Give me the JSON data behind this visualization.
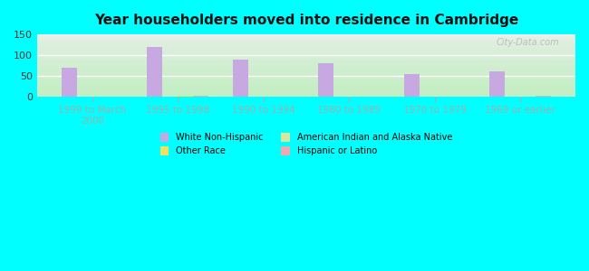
{
  "title": "Year householders moved into residence in Cambridge",
  "background_color": "#00FFFF",
  "categories": [
    "1999 to March\n2000",
    "1995 to 1998",
    "1990 to 1994",
    "1980 to 1989",
    "1970 to 1979",
    "1969 or earlier"
  ],
  "series": [
    {
      "name": "White Non-Hispanic",
      "color": "#c8a8e0",
      "values": [
        70,
        120,
        90,
        80,
        55,
        60
      ]
    },
    {
      "name": "American Indian and Alaska Native",
      "color": "#d4e8a0",
      "values": [
        0,
        0,
        0,
        0,
        0,
        0
      ]
    },
    {
      "name": "Other Race",
      "color": "#f0e060",
      "values": [
        0,
        3,
        0,
        0,
        0,
        0
      ]
    },
    {
      "name": "Hispanic or Latino",
      "color": "#f0a8b0",
      "values": [
        0,
        3,
        0,
        0,
        0,
        2
      ]
    }
  ],
  "ylim": [
    0,
    150
  ],
  "yticks": [
    0,
    50,
    100,
    150
  ],
  "bar_width": 0.18,
  "watermark": "City-Data.com",
  "legend_order": [
    "White Non-Hispanic",
    "Other Race",
    "American Indian and Alaska Native",
    "Hispanic or Latino"
  ],
  "legend_colors": {
    "White Non-Hispanic": "#c8a8e0",
    "American Indian and Alaska Native": "#d4e8a0",
    "Other Race": "#f0e060",
    "Hispanic or Latino": "#f0a8b0"
  }
}
